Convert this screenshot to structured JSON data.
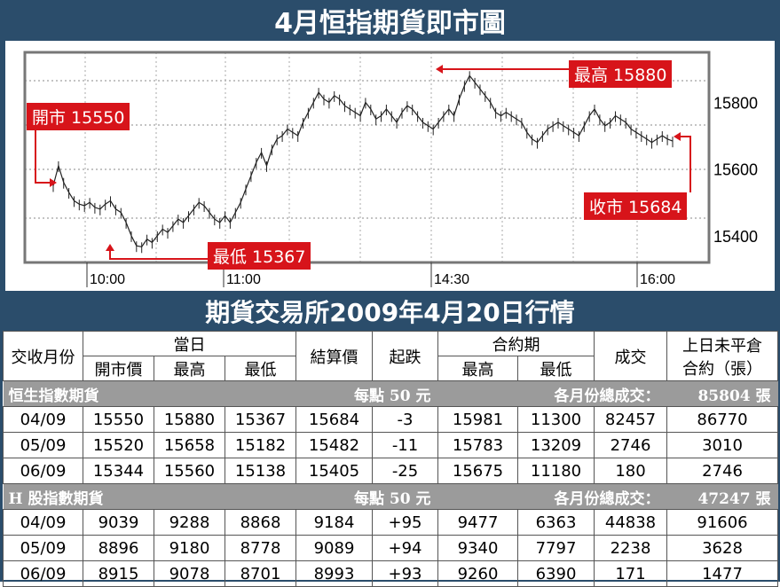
{
  "title": "4月恒指期貨即市圖",
  "table_title": "期貨交易所2009年4月20日行情",
  "colors": {
    "band": "#2b4d6b",
    "accent": "#d7141a",
    "section": "#9b9b9b"
  },
  "chart_data": {
    "type": "line",
    "x_ticks": [
      "10:00",
      "11:00",
      "14:30",
      "16:00"
    ],
    "y_ticks": [
      "15800",
      "15600",
      "15400"
    ],
    "ylim": [
      15320,
      15950
    ],
    "annotations": [
      {
        "label": "開市 15550",
        "value": 15550
      },
      {
        "label": "最低 15367",
        "value": 15367
      },
      {
        "label": "最高 15880",
        "value": 15880
      },
      {
        "label": "收市 15684",
        "value": 15684
      }
    ],
    "series": [
      {
        "values": [
          15550,
          15610,
          15560,
          15530,
          15505,
          15495,
          15490,
          15500,
          15485,
          15480,
          15495,
          15505,
          15480,
          15470,
          15440,
          15400,
          15370,
          15367,
          15390,
          15380,
          15400,
          15420,
          15410,
          15430,
          15450,
          15440,
          15460,
          15480,
          15500,
          15490,
          15470,
          15450,
          15440,
          15460,
          15440,
          15470,
          15500,
          15540,
          15580,
          15620,
          15650,
          15610,
          15660,
          15690,
          15700,
          15720,
          15710,
          15700,
          15740,
          15770,
          15800,
          15830,
          15810,
          15800,
          15820,
          15810,
          15790,
          15780,
          15770,
          15760,
          15800,
          15780,
          15750,
          15760,
          15780,
          15760,
          15740,
          15770,
          15790,
          15780,
          15760,
          15740,
          15730,
          15720,
          15740,
          15760,
          15780,
          15760,
          15810,
          15850,
          15880,
          15860,
          15840,
          15820,
          15800,
          15770,
          15760,
          15770,
          15760,
          15750,
          15740,
          15710,
          15690,
          15680,
          15700,
          15720,
          15730,
          15740,
          15730,
          15720,
          15710,
          15700,
          15730,
          15760,
          15780,
          15750,
          15730,
          15740,
          15760,
          15750,
          15740,
          15720,
          15710,
          15700,
          15690,
          15680,
          15690,
          15700,
          15690,
          15684
        ]
      }
    ]
  },
  "table": {
    "h_contract": "交收月份",
    "h_day": "當日",
    "h_open": "開市價",
    "h_high": "最高",
    "h_low": "最低",
    "h_settle": "結算價",
    "h_change": "起跌",
    "h_contract_period": "合約期",
    "h_cp_high": "最高",
    "h_cp_low": "最低",
    "h_volume": "成交",
    "h_oi_1": "上日未平倉",
    "h_oi_2": "合約（張）",
    "sections": [
      {
        "name": "恒生指數期貨",
        "per_point": "每點 50 元",
        "total_label": "各月份總成交：",
        "total": "85804 張",
        "rows": [
          [
            "04/09",
            "15550",
            "15880",
            "15367",
            "15684",
            "-3",
            "15981",
            "11300",
            "82457",
            "86770"
          ],
          [
            "05/09",
            "15520",
            "15658",
            "15182",
            "15482",
            "-11",
            "15783",
            "13209",
            "2746",
            "3010"
          ],
          [
            "06/09",
            "15344",
            "15560",
            "15138",
            "15405",
            "-25",
            "15675",
            "11180",
            "180",
            "2746"
          ]
        ]
      },
      {
        "name": "H 股指數期貨",
        "per_point": "每點 50 元",
        "total_label": "各月份總成交：",
        "total": "47247 張",
        "rows": [
          [
            "04/09",
            "9039",
            "9288",
            "8868",
            "9184",
            "+95",
            "9477",
            "6363",
            "44838",
            "91606"
          ],
          [
            "05/09",
            "8896",
            "9180",
            "8778",
            "9089",
            "+94",
            "9340",
            "7797",
            "2238",
            "3628"
          ],
          [
            "06/09",
            "8915",
            "9078",
            "8701",
            "8993",
            "+93",
            "9260",
            "6390",
            "171",
            "1477"
          ]
        ]
      }
    ]
  }
}
